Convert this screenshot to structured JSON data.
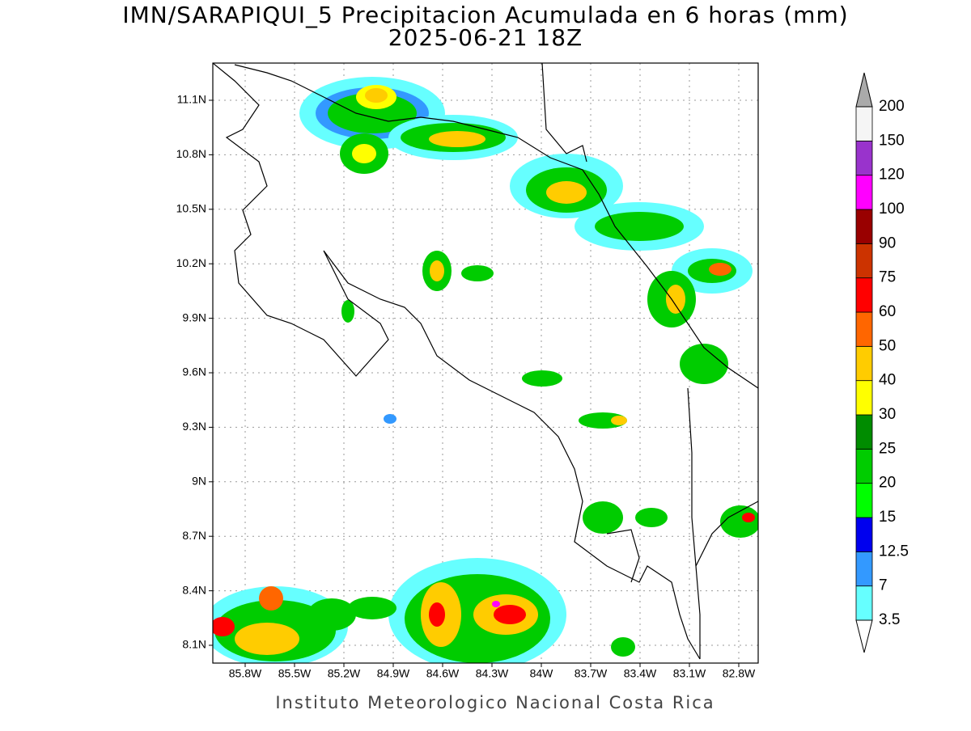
{
  "header": {
    "title": "IMN/SARAPIQUI_5 Precipitacion Acumulada en 6 horas (mm)",
    "subtitle": "2025-06-21 18Z"
  },
  "map": {
    "lat_labels": [
      "11.1N",
      "10.8N",
      "10.5N",
      "10.2N",
      "9.9N",
      "9.6N",
      "9.3N",
      "9N",
      "8.7N",
      "8.4N",
      "8.1N"
    ],
    "lon_labels": [
      "85.8W",
      "85.5W",
      "85.2W",
      "84.9W",
      "84.6W",
      "84.3W",
      "84W",
      "83.7W",
      "83.4W",
      "83.1W",
      "82.8W"
    ]
  },
  "legend": {
    "labels": [
      "3.5",
      "7",
      "12.5",
      "15",
      "20",
      "25",
      "30",
      "40",
      "50",
      "60",
      "75",
      "90",
      "100",
      "120",
      "150",
      "200"
    ],
    "colors": [
      "#66ffff",
      "#3399ff",
      "#0000ee",
      "#00ff00",
      "#00cc00",
      "#008c00",
      "#ffff00",
      "#ffcc00",
      "#ff6600",
      "#ff0000",
      "#cc3300",
      "#990000",
      "#ff00ff",
      "#9933cc",
      "#f5f5f5"
    ]
  },
  "footer": "Instituto Meteorologico Nacional Costa Rica"
}
